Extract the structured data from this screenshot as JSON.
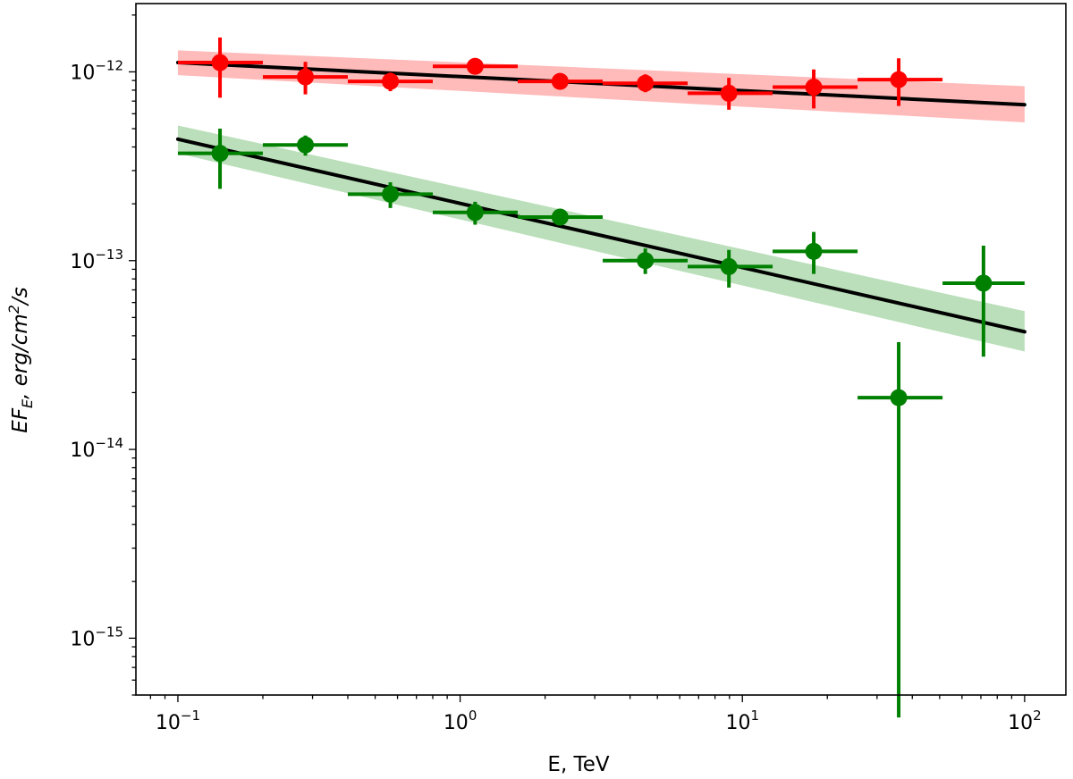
{
  "chart_data": {
    "type": "scatter",
    "title": "",
    "xlabel": "E, TeV",
    "ylabel": "EF_E, erg/cm^2/s",
    "ylabel_parts": {
      "main": "EF",
      "sub": "E",
      "rest1": ", erg/cm",
      "sup": "2",
      "rest2": "/s"
    },
    "xscale": "log",
    "yscale": "log",
    "xlim": [
      0.071,
      140
    ],
    "ylim": [
      5e-16,
      2.3e-12
    ],
    "grid": false,
    "x_ticks": [
      {
        "value": 0.1,
        "base": "10",
        "exp": "−1"
      },
      {
        "value": 1,
        "base": "10",
        "exp": "0"
      },
      {
        "value": 10,
        "base": "10",
        "exp": "1"
      },
      {
        "value": 100,
        "base": "10",
        "exp": "2"
      }
    ],
    "y_ticks": [
      {
        "value": 1e-15,
        "base": "10",
        "exp": "−15"
      },
      {
        "value": 1e-14,
        "base": "10",
        "exp": "−14"
      },
      {
        "value": 1e-13,
        "base": "10",
        "exp": "−13"
      },
      {
        "value": 1e-12,
        "base": "10",
        "exp": "−12"
      }
    ],
    "series": [
      {
        "name": "red",
        "color": "#ff0000",
        "band_color": "#ffb3b3",
        "points": [
          {
            "x": 0.141,
            "xlo": 0.1,
            "xhi": 0.2,
            "y": 1.12e-12,
            "ylo": 7.3e-13,
            "yhi": 1.52e-12
          },
          {
            "x": 0.283,
            "xlo": 0.2,
            "xhi": 0.4,
            "y": 9.4e-13,
            "ylo": 7.6e-13,
            "yhi": 1.13e-12
          },
          {
            "x": 0.566,
            "xlo": 0.4,
            "xhi": 0.8,
            "y": 8.9e-13,
            "ylo": 7.9e-13,
            "yhi": 9.9e-13
          },
          {
            "x": 1.13,
            "xlo": 0.8,
            "xhi": 1.6,
            "y": 1.07e-12,
            "ylo": 1.02e-12,
            "yhi": 1.12e-12
          },
          {
            "x": 2.26,
            "xlo": 1.6,
            "xhi": 3.2,
            "y": 8.9e-13,
            "ylo": 8.3e-13,
            "yhi": 9.5e-13
          },
          {
            "x": 4.53,
            "xlo": 3.2,
            "xhi": 6.4,
            "y": 8.7e-13,
            "ylo": 7.8e-13,
            "yhi": 9.7e-13
          },
          {
            "x": 8.96,
            "xlo": 6.4,
            "xhi": 12.8,
            "y": 7.7e-13,
            "ylo": 6.3e-13,
            "yhi": 9.3e-13
          },
          {
            "x": 17.9,
            "xlo": 12.8,
            "xhi": 25.6,
            "y": 8.3e-13,
            "ylo": 6.4e-13,
            "yhi": 1.03e-12
          },
          {
            "x": 35.8,
            "xlo": 25.6,
            "xhi": 51.2,
            "y": 9.1e-13,
            "ylo": 6.6e-13,
            "yhi": 1.18e-12
          }
        ],
        "fit": {
          "x": [
            0.1,
            100
          ],
          "y": [
            1.12e-12,
            6.7e-13
          ]
        },
        "band": {
          "x": [
            0.1,
            100
          ],
          "lower": [
            9.6e-13,
            5.4e-13
          ],
          "upper": [
            1.3e-12,
            8.4e-13
          ]
        }
      },
      {
        "name": "green",
        "color": "#008000",
        "band_color": "#b3dcb3",
        "points": [
          {
            "x": 0.141,
            "xlo": 0.1,
            "xhi": 0.2,
            "y": 3.7e-13,
            "ylo": 2.4e-13,
            "yhi": 5e-13
          },
          {
            "x": 0.283,
            "xlo": 0.2,
            "xhi": 0.4,
            "y": 4.1e-13,
            "ylo": 3.6e-13,
            "yhi": 4.6e-13
          },
          {
            "x": 0.566,
            "xlo": 0.4,
            "xhi": 0.8,
            "y": 2.25e-13,
            "ylo": 1.9e-13,
            "yhi": 2.6e-13
          },
          {
            "x": 1.13,
            "xlo": 0.8,
            "xhi": 1.6,
            "y": 1.8e-13,
            "ylo": 1.55e-13,
            "yhi": 2.05e-13
          },
          {
            "x": 2.26,
            "xlo": 1.6,
            "xhi": 3.2,
            "y": 1.7e-13,
            "ylo": 1.57e-13,
            "yhi": 1.83e-13
          },
          {
            "x": 4.53,
            "xlo": 3.2,
            "xhi": 6.4,
            "y": 1e-13,
            "ylo": 8.5e-14,
            "yhi": 1.16e-13
          },
          {
            "x": 8.96,
            "xlo": 6.4,
            "xhi": 12.8,
            "y": 9.3e-14,
            "ylo": 7.2e-14,
            "yhi": 1.14e-13
          },
          {
            "x": 17.9,
            "xlo": 12.8,
            "xhi": 25.6,
            "y": 1.12e-13,
            "ylo": 8.5e-14,
            "yhi": 1.42e-13
          },
          {
            "x": 35.8,
            "xlo": 25.6,
            "xhi": 51.2,
            "y": 1.88e-14,
            "ylo": 3.8e-16,
            "yhi": 3.7e-14
          },
          {
            "x": 71.5,
            "xlo": 51.2,
            "xhi": 100,
            "y": 7.6e-14,
            "ylo": 3.1e-14,
            "yhi": 1.2e-13
          }
        ],
        "fit": {
          "x": [
            0.1,
            100
          ],
          "y": [
            4.4e-13,
            4.2e-14
          ]
        },
        "band": {
          "x": [
            0.1,
            100
          ],
          "lower": [
            3.7e-13,
            3.3e-14
          ],
          "upper": [
            5.2e-13,
            5.4e-14
          ]
        }
      }
    ]
  }
}
